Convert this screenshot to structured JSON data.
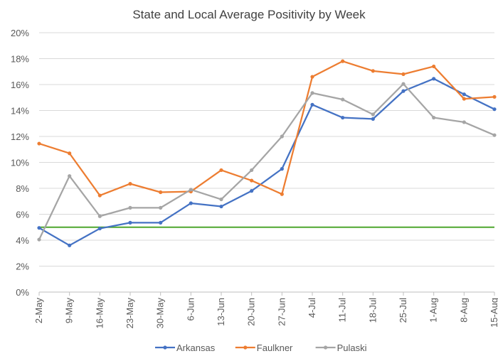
{
  "chart_data": {
    "type": "line",
    "title": "State and Local Average Positivity by Week",
    "xlabel": "",
    "ylabel": "",
    "categories": [
      "2-May",
      "9-May",
      "16-May",
      "23-May",
      "30-May",
      "6-Jun",
      "13-Jun",
      "20-Jun",
      "27-Jun",
      "4-Jul",
      "11-Jul",
      "18-Jul",
      "25-Jul",
      "1-Aug",
      "8-Aug",
      "15-Aug"
    ],
    "ylim": [
      0,
      20
    ],
    "yticks": [
      0,
      2,
      4,
      6,
      8,
      10,
      12,
      14,
      16,
      18,
      20
    ],
    "ytick_labels": [
      "0%",
      "2%",
      "4%",
      "6%",
      "8%",
      "10%",
      "12%",
      "14%",
      "16%",
      "18%",
      "20%"
    ],
    "grid": true,
    "legend_position": "bottom",
    "reference_line": {
      "value": 5,
      "color": "#4ea72e"
    },
    "series": [
      {
        "name": "Arkansas",
        "color": "#4472c4",
        "values": [
          4.95,
          3.6,
          4.9,
          5.35,
          5.35,
          6.85,
          6.6,
          7.8,
          9.5,
          14.45,
          13.45,
          13.35,
          15.5,
          16.45,
          15.25,
          14.1
        ]
      },
      {
        "name": "Faulkner",
        "color": "#ed7d31",
        "values": [
          11.45,
          10.7,
          7.45,
          8.35,
          7.7,
          7.75,
          9.4,
          8.6,
          7.55,
          16.6,
          17.8,
          17.05,
          16.8,
          17.4,
          14.9,
          15.05
        ]
      },
      {
        "name": "Pulaski",
        "color": "#a5a5a5",
        "values": [
          4.05,
          8.95,
          5.85,
          6.5,
          6.5,
          7.9,
          7.15,
          9.4,
          12.0,
          15.35,
          14.85,
          13.7,
          16.05,
          13.45,
          13.1,
          12.1
        ]
      }
    ]
  }
}
